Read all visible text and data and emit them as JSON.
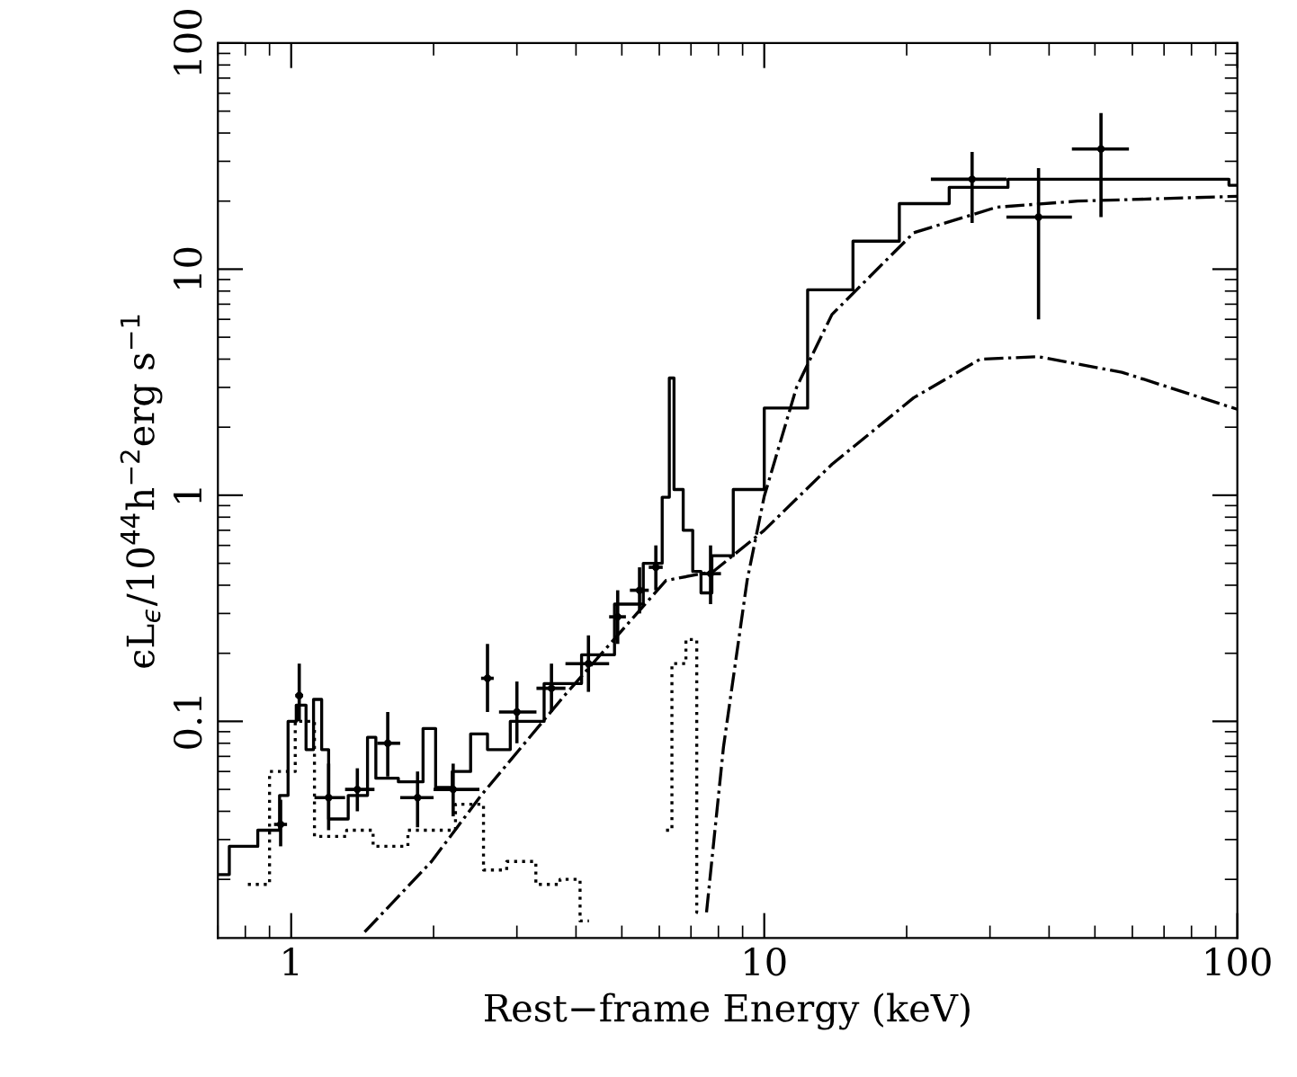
{
  "chart_data": {
    "type": "step",
    "xlabel": "Rest−frame Energy (keV)",
    "ylabel": "ϵL$_{ϵ}$/10$^{44}$h$^{−2}$erg s$^{−1}$",
    "log": "xy",
    "grid": false,
    "xlim": [
      0.7,
      100
    ],
    "xticks": [
      1,
      10,
      100
    ],
    "ylim": [
      0.011,
      100
    ],
    "yticks": [
      0.1,
      1,
      10,
      100
    ],
    "series": [
      {
        "line_style": "solid",
        "color": "#000000",
        "x": [
          0.7,
          0.78,
          0.92,
          0.97,
          1.0,
          1.05,
          1.1,
          1.13,
          1.19,
          1.21,
          1.43,
          1.47,
          1.55,
          1.82,
          1.98,
          2.06,
          2.32,
          2.47,
          2.73,
          3.08,
          3.77,
          4.45,
          5.2,
          5.9,
          6.27,
          6.33,
          6.56,
          6.92,
          7.2,
          7.5,
          8.0,
          9.2,
          10.8,
          13.9,
          16.9,
          21.7,
          27.5,
          38,
          92,
          100
        ],
        "values": [
          0.021,
          0.028,
          0.033,
          0.047,
          0.1,
          0.118,
          0.075,
          0.125,
          0.075,
          0.037,
          0.047,
          0.085,
          0.056,
          0.054,
          0.093,
          0.051,
          0.06,
          0.088,
          0.075,
          0.1,
          0.147,
          0.197,
          0.33,
          0.5,
          0.98,
          3.3,
          1.06,
          0.7,
          0.46,
          0.37,
          0.54,
          1.06,
          2.43,
          8.1,
          13.3,
          19.5,
          23,
          25,
          25,
          23.5
        ]
      },
      {
        "type": "step",
        "line_style": "dotted",
        "color": "#000000",
        "x": [
          0.81,
          0.99,
          1.05,
          1.19,
          1.43,
          1.55,
          1.98,
          2.47,
          2.63,
          3.08,
          3.5,
          3.9,
          4.26
        ],
        "values": [
          0.019,
          0.06,
          0.1,
          0.031,
          0.033,
          0.028,
          0.033,
          0.043,
          0.022,
          0.024,
          0.019,
          0.02,
          0.0131
        ]
      },
      {
        "type": "line",
        "line_style": "dashdot",
        "color": "#000000",
        "x": [
          1.43,
          1.98,
          2.52,
          3.77,
          6.2,
          7.8,
          10,
          13.9,
          20.7,
          28.6,
          38,
          57,
          100
        ],
        "values": [
          0.0117,
          0.024,
          0.047,
          0.129,
          0.42,
          0.46,
          0.7,
          1.37,
          2.7,
          4.0,
          4.1,
          3.5,
          2.4
        ]
      },
      {
        "type": "step",
        "line_style": "dotted",
        "color": "#000000",
        "x": [
          6.2,
          6.56,
          7.1,
          7.3
        ],
        "values": [
          0.033,
          0.18,
          0.23,
          0.0143
        ]
      },
      {
        "type": "line",
        "line_style": "dashdot",
        "color": "#000000",
        "x": [
          7.55,
          8.2,
          9.2,
          10,
          11.7,
          13.9,
          20.7,
          31,
          46,
          100
        ],
        "values": [
          0.0143,
          0.077,
          0.42,
          0.99,
          3.0,
          6.3,
          14.5,
          18.8,
          20,
          21
        ]
      },
      {
        "type": "scatter",
        "marker": "circle",
        "color": "#000000",
        "x": [
          0.95,
          1.04,
          1.2,
          1.38,
          1.6,
          1.85,
          2.2,
          2.6,
          3.0,
          3.55,
          4.25,
          4.9,
          5.45,
          5.9,
          7.7,
          27.5,
          38,
          51.5
        ],
        "values": [
          0.035,
          0.13,
          0.046,
          0.05,
          0.08,
          0.046,
          0.05,
          0.155,
          0.11,
          0.14,
          0.18,
          0.29,
          0.38,
          0.48,
          0.45,
          25,
          17,
          34
        ],
        "errors": [
          [
            0.028,
            0.045
          ],
          [
            0.1,
            0.18
          ],
          [
            0.033,
            0.065
          ],
          [
            0.04,
            0.062
          ],
          [
            0.057,
            0.11
          ],
          [
            0.034,
            0.06
          ],
          [
            0.038,
            0.065
          ],
          [
            0.11,
            0.22
          ],
          [
            0.08,
            0.15
          ],
          [
            0.11,
            0.18
          ],
          [
            0.135,
            0.24
          ],
          [
            0.22,
            0.38
          ],
          [
            0.3,
            0.48
          ],
          [
            0.38,
            0.6
          ],
          [
            0.33,
            0.6
          ],
          [
            16,
            33
          ],
          [
            6,
            28
          ],
          [
            17,
            49
          ]
        ],
        "xerrors": [
          [
            0.92,
            0.98
          ],
          [
            1.02,
            1.06
          ],
          [
            1.12,
            1.3
          ],
          [
            1.3,
            1.5
          ],
          [
            1.52,
            1.7
          ],
          [
            1.7,
            2.0
          ],
          [
            2.0,
            2.5
          ],
          [
            2.52,
            2.68
          ],
          [
            2.75,
            3.3
          ],
          [
            3.3,
            3.8
          ],
          [
            3.8,
            4.7
          ],
          [
            4.7,
            5.1
          ],
          [
            5.2,
            5.7
          ],
          [
            5.7,
            6.1
          ],
          [
            7.3,
            8.1
          ],
          [
            22.5,
            32.5
          ],
          [
            32.5,
            44.7
          ],
          [
            44.7,
            59
          ]
        ]
      }
    ]
  }
}
